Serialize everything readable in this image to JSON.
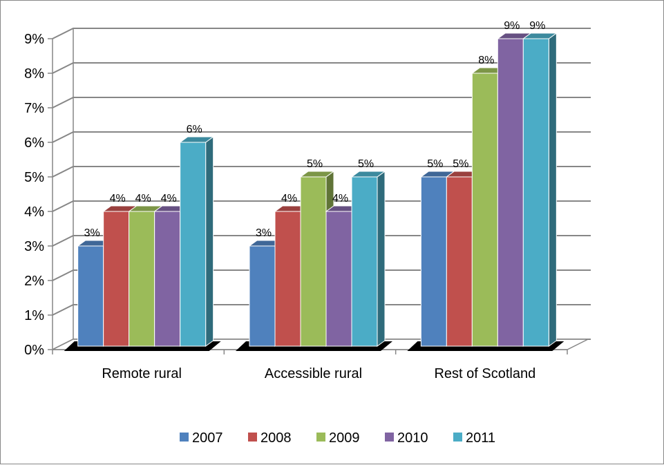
{
  "chart_data": {
    "type": "bar",
    "title": "",
    "xlabel": "",
    "ylabel": "",
    "categories": [
      "Remote rural",
      "Accessible rural",
      "Rest of Scotland"
    ],
    "series": [
      {
        "name": "2007",
        "values": [
          3,
          3,
          5
        ],
        "labels": [
          "3%",
          "3%",
          "5%"
        ],
        "color": "#4f81bd"
      },
      {
        "name": "2008",
        "values": [
          4,
          4,
          5
        ],
        "labels": [
          "4%",
          "4%",
          "5%"
        ],
        "color": "#c0504d"
      },
      {
        "name": "2009",
        "values": [
          4,
          5,
          8
        ],
        "labels": [
          "4%",
          "5%",
          "8%"
        ],
        "color": "#9bbb59"
      },
      {
        "name": "2010",
        "values": [
          4,
          4,
          9
        ],
        "labels": [
          "4%",
          "4%",
          "9%"
        ],
        "color": "#8064a2"
      },
      {
        "name": "2011",
        "values": [
          6,
          5,
          9
        ],
        "labels": [
          "6%",
          "5%",
          "9%"
        ],
        "color": "#4bacc6"
      }
    ],
    "ylim": [
      0,
      9
    ],
    "yticks": [
      "0%",
      "1%",
      "2%",
      "3%",
      "4%",
      "5%",
      "6%",
      "7%",
      "8%",
      "9%"
    ],
    "grid": true,
    "legend_position": "bottom",
    "style": "3d-clustered-column"
  }
}
